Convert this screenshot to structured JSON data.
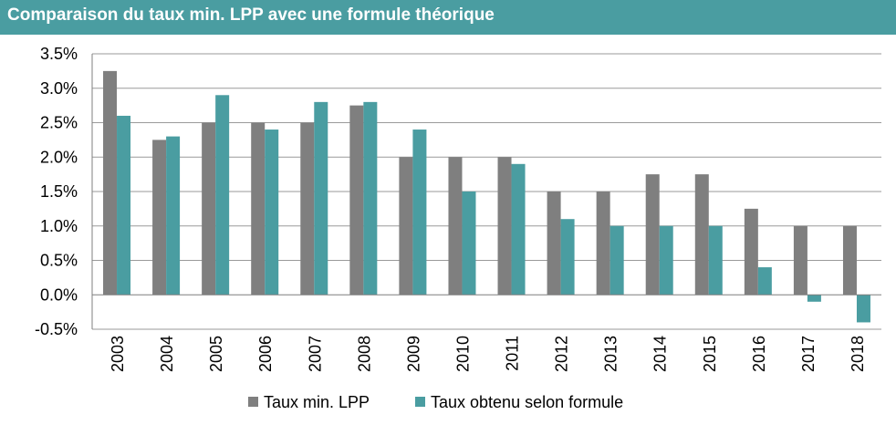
{
  "header": {
    "title": "Comparaison du taux min. LPP avec une formule théorique"
  },
  "chart_data": {
    "type": "bar",
    "title": "Comparaison du taux min. LPP avec une formule théorique",
    "xlabel": "",
    "ylabel": "",
    "ylim": [
      -0.5,
      3.5
    ],
    "yticks": [
      -0.5,
      0.0,
      0.5,
      1.0,
      1.5,
      2.0,
      2.5,
      3.0,
      3.5
    ],
    "ytick_labels": [
      "-0.5%",
      "0.0%",
      "0.5%",
      "1.0%",
      "1.5%",
      "2.0%",
      "2.5%",
      "3.0%",
      "3.5%"
    ],
    "grid": true,
    "legend_position": "bottom",
    "categories": [
      "2003",
      "2004",
      "2005",
      "2006",
      "2007",
      "2008",
      "2009",
      "2010",
      "2011",
      "2012",
      "2013",
      "2014",
      "2015",
      "2016",
      "2017",
      "2018"
    ],
    "series": [
      {
        "name": "Taux min. LPP",
        "color": "#7f7f7f",
        "values": [
          3.25,
          2.25,
          2.5,
          2.5,
          2.5,
          2.75,
          2.0,
          2.0,
          2.0,
          1.5,
          1.5,
          1.75,
          1.75,
          1.25,
          1.0,
          1.0
        ]
      },
      {
        "name": "Taux obtenu selon formule",
        "color": "#4a9da1",
        "values": [
          2.6,
          2.3,
          2.9,
          2.4,
          2.8,
          2.8,
          2.4,
          1.5,
          1.9,
          1.1,
          1.0,
          1.0,
          1.0,
          0.4,
          -0.1,
          -0.4
        ]
      }
    ]
  }
}
